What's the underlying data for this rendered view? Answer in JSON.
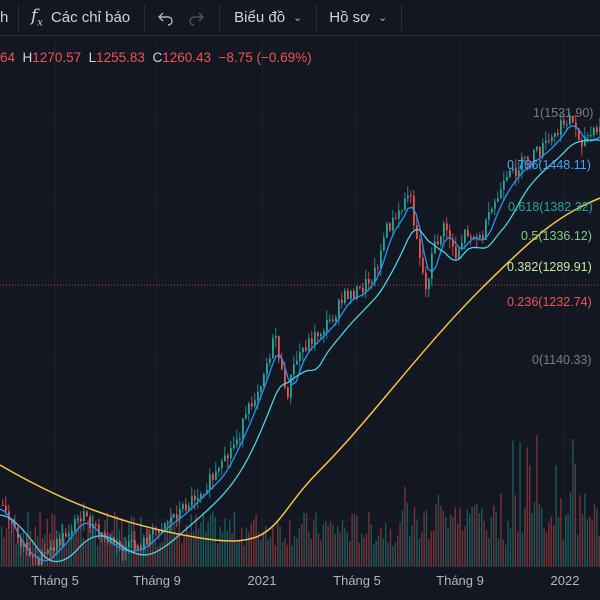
{
  "toolbar": {
    "left_fragment": "h",
    "indicators_icon": "fx-icon",
    "indicators_label": "Các chỉ báo",
    "undo_icon": "undo-icon",
    "redo_icon": "redo-icon",
    "chart_menu_label": "Biểu đồ",
    "profile_menu_label": "Hồ sơ",
    "caret_icon": "chevron-down-icon"
  },
  "ohlc": {
    "open_fragment": "64",
    "high_label": "H",
    "high": "1270.57",
    "low_label": "L",
    "low": "1255.83",
    "close_label": "C",
    "close": "1260.43",
    "change": "−8.75 (−0.69%)"
  },
  "fib_levels": [
    {
      "label": "1(1531.90)",
      "color": "#787b86"
    },
    {
      "label": "0.786(1448.11)",
      "color": "#42a5f5"
    },
    {
      "label": "0.618(1382.32)",
      "color": "#26a69a"
    },
    {
      "label": "0.5(1336.12)",
      "color": "#81c784"
    },
    {
      "label": "0.382(1289.91)",
      "color": "#c8e6a0"
    },
    {
      "label": "0.236(1232.74)",
      "color": "#ef5350"
    },
    {
      "label": "0(1140.33)",
      "color": "#787b86"
    }
  ],
  "x_axis": [
    "Tháng 5",
    "Tháng 9",
    "2021",
    "Tháng 5",
    "Tháng 9",
    "2022"
  ],
  "colors": {
    "background": "#131722",
    "up": "#26a69a",
    "down": "#ef5350",
    "ma_short": "#2196f3",
    "ma_mid": "#4dd0e1",
    "ma_long": "#f6c343"
  }
}
